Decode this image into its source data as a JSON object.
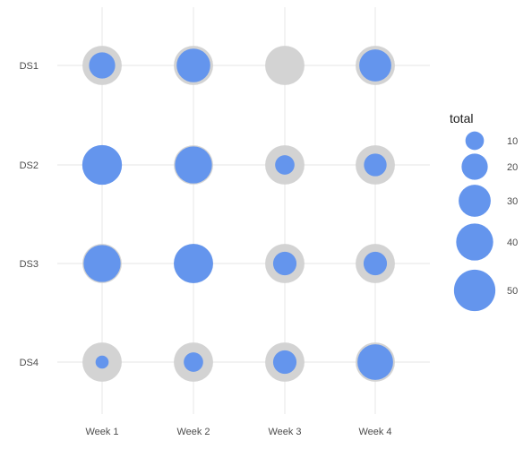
{
  "chart_data": {
    "type": "scatter",
    "subtype": "bubble",
    "x_categories": [
      "Week 1",
      "Week 2",
      "Week 3",
      "Week 4"
    ],
    "y_categories": [
      "DS1",
      "DS2",
      "DS3",
      "DS4"
    ],
    "size_variable": "total",
    "background_value": 45,
    "points": [
      {
        "x": "Week 1",
        "y": "DS1",
        "total": 20
      },
      {
        "x": "Week 2",
        "y": "DS1",
        "total": 33
      },
      {
        "x": "Week 3",
        "y": "DS1",
        "total": 0
      },
      {
        "x": "Week 4",
        "y": "DS1",
        "total": 30
      },
      {
        "x": "Week 1",
        "y": "DS2",
        "total": 46
      },
      {
        "x": "Week 2",
        "y": "DS2",
        "total": 40
      },
      {
        "x": "Week 3",
        "y": "DS2",
        "total": 11
      },
      {
        "x": "Week 4",
        "y": "DS2",
        "total": 15
      },
      {
        "x": "Week 1",
        "y": "DS3",
        "total": 40
      },
      {
        "x": "Week 2",
        "y": "DS3",
        "total": 45
      },
      {
        "x": "Week 3",
        "y": "DS3",
        "total": 16
      },
      {
        "x": "Week 4",
        "y": "DS3",
        "total": 16
      },
      {
        "x": "Week 1",
        "y": "DS4",
        "total": 5
      },
      {
        "x": "Week 2",
        "y": "DS4",
        "total": 11
      },
      {
        "x": "Week 3",
        "y": "DS4",
        "total": 16
      },
      {
        "x": "Week 4",
        "y": "DS4",
        "total": 37
      }
    ],
    "legend": {
      "title": "total",
      "position": "right",
      "breaks": [
        10,
        20,
        30,
        40,
        50
      ]
    },
    "colors": {
      "fill": "#6495ED",
      "background": "#D3D3D3",
      "grid": "#EBEBEB"
    },
    "grid": true
  }
}
